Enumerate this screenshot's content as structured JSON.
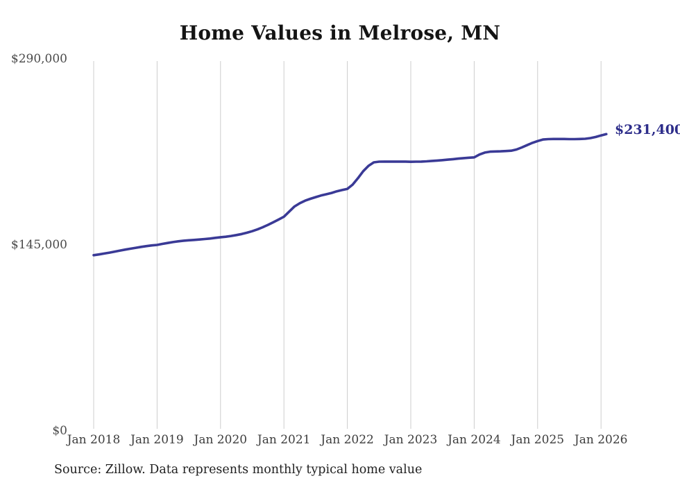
{
  "chart_data": {
    "type": "line",
    "title": "Home Values in Melrose, MN",
    "end_label": "$231,400",
    "latest_value": 231400,
    "source_note": "Source: Zillow. Data represents monthly typical home value",
    "ylim": [
      0,
      290000
    ],
    "grid": "vertical-only",
    "legend_position": "none",
    "y_ticks": [
      {
        "label": "$290,000",
        "value": 290000
      },
      {
        "label": "$145,000",
        "value": 145000
      },
      {
        "label": "$0",
        "value": 0
      }
    ],
    "x_ticks": [
      "Jan 2018",
      "Jan 2019",
      "Jan 2020",
      "Jan 2021",
      "Jan 2022",
      "Jan 2023",
      "Jan 2024",
      "Jan 2025",
      "Jan 2026"
    ],
    "series": [
      {
        "name": "Monthly typical home value",
        "color": "#3a3a96",
        "start_month": "2018-01",
        "frequency": "monthly",
        "values": [
          137000,
          137600,
          138300,
          139000,
          139800,
          140600,
          141400,
          142100,
          142800,
          143500,
          144100,
          144600,
          145000,
          145800,
          146500,
          147200,
          147800,
          148300,
          148600,
          148900,
          149200,
          149600,
          150000,
          150500,
          151000,
          151400,
          152000,
          152700,
          153500,
          154500,
          155700,
          157100,
          158800,
          160700,
          162700,
          164800,
          167000,
          171000,
          175000,
          177500,
          179500,
          181000,
          182300,
          183500,
          184500,
          185500,
          186800,
          187800,
          188700,
          192000,
          197000,
          202500,
          206700,
          209400,
          209900,
          210000,
          210000,
          210000,
          210000,
          210000,
          209800,
          209900,
          210000,
          210200,
          210500,
          210800,
          211100,
          211500,
          211900,
          212300,
          212700,
          213000,
          213300,
          215500,
          217000,
          217700,
          217900,
          218000,
          218200,
          218500,
          219400,
          221000,
          222800,
          224600,
          226000,
          227200,
          227500,
          227600,
          227600,
          227600,
          227500,
          227500,
          227600,
          227800,
          228300,
          229200,
          230400,
          231400
        ]
      }
    ],
    "colors": {
      "line": "#3a3a96",
      "end_label": "#2d2d8a",
      "gridline": "#cccccc",
      "axis_text": "#4a4a4a",
      "title_text": "#141414",
      "background": "#ffffff"
    }
  }
}
